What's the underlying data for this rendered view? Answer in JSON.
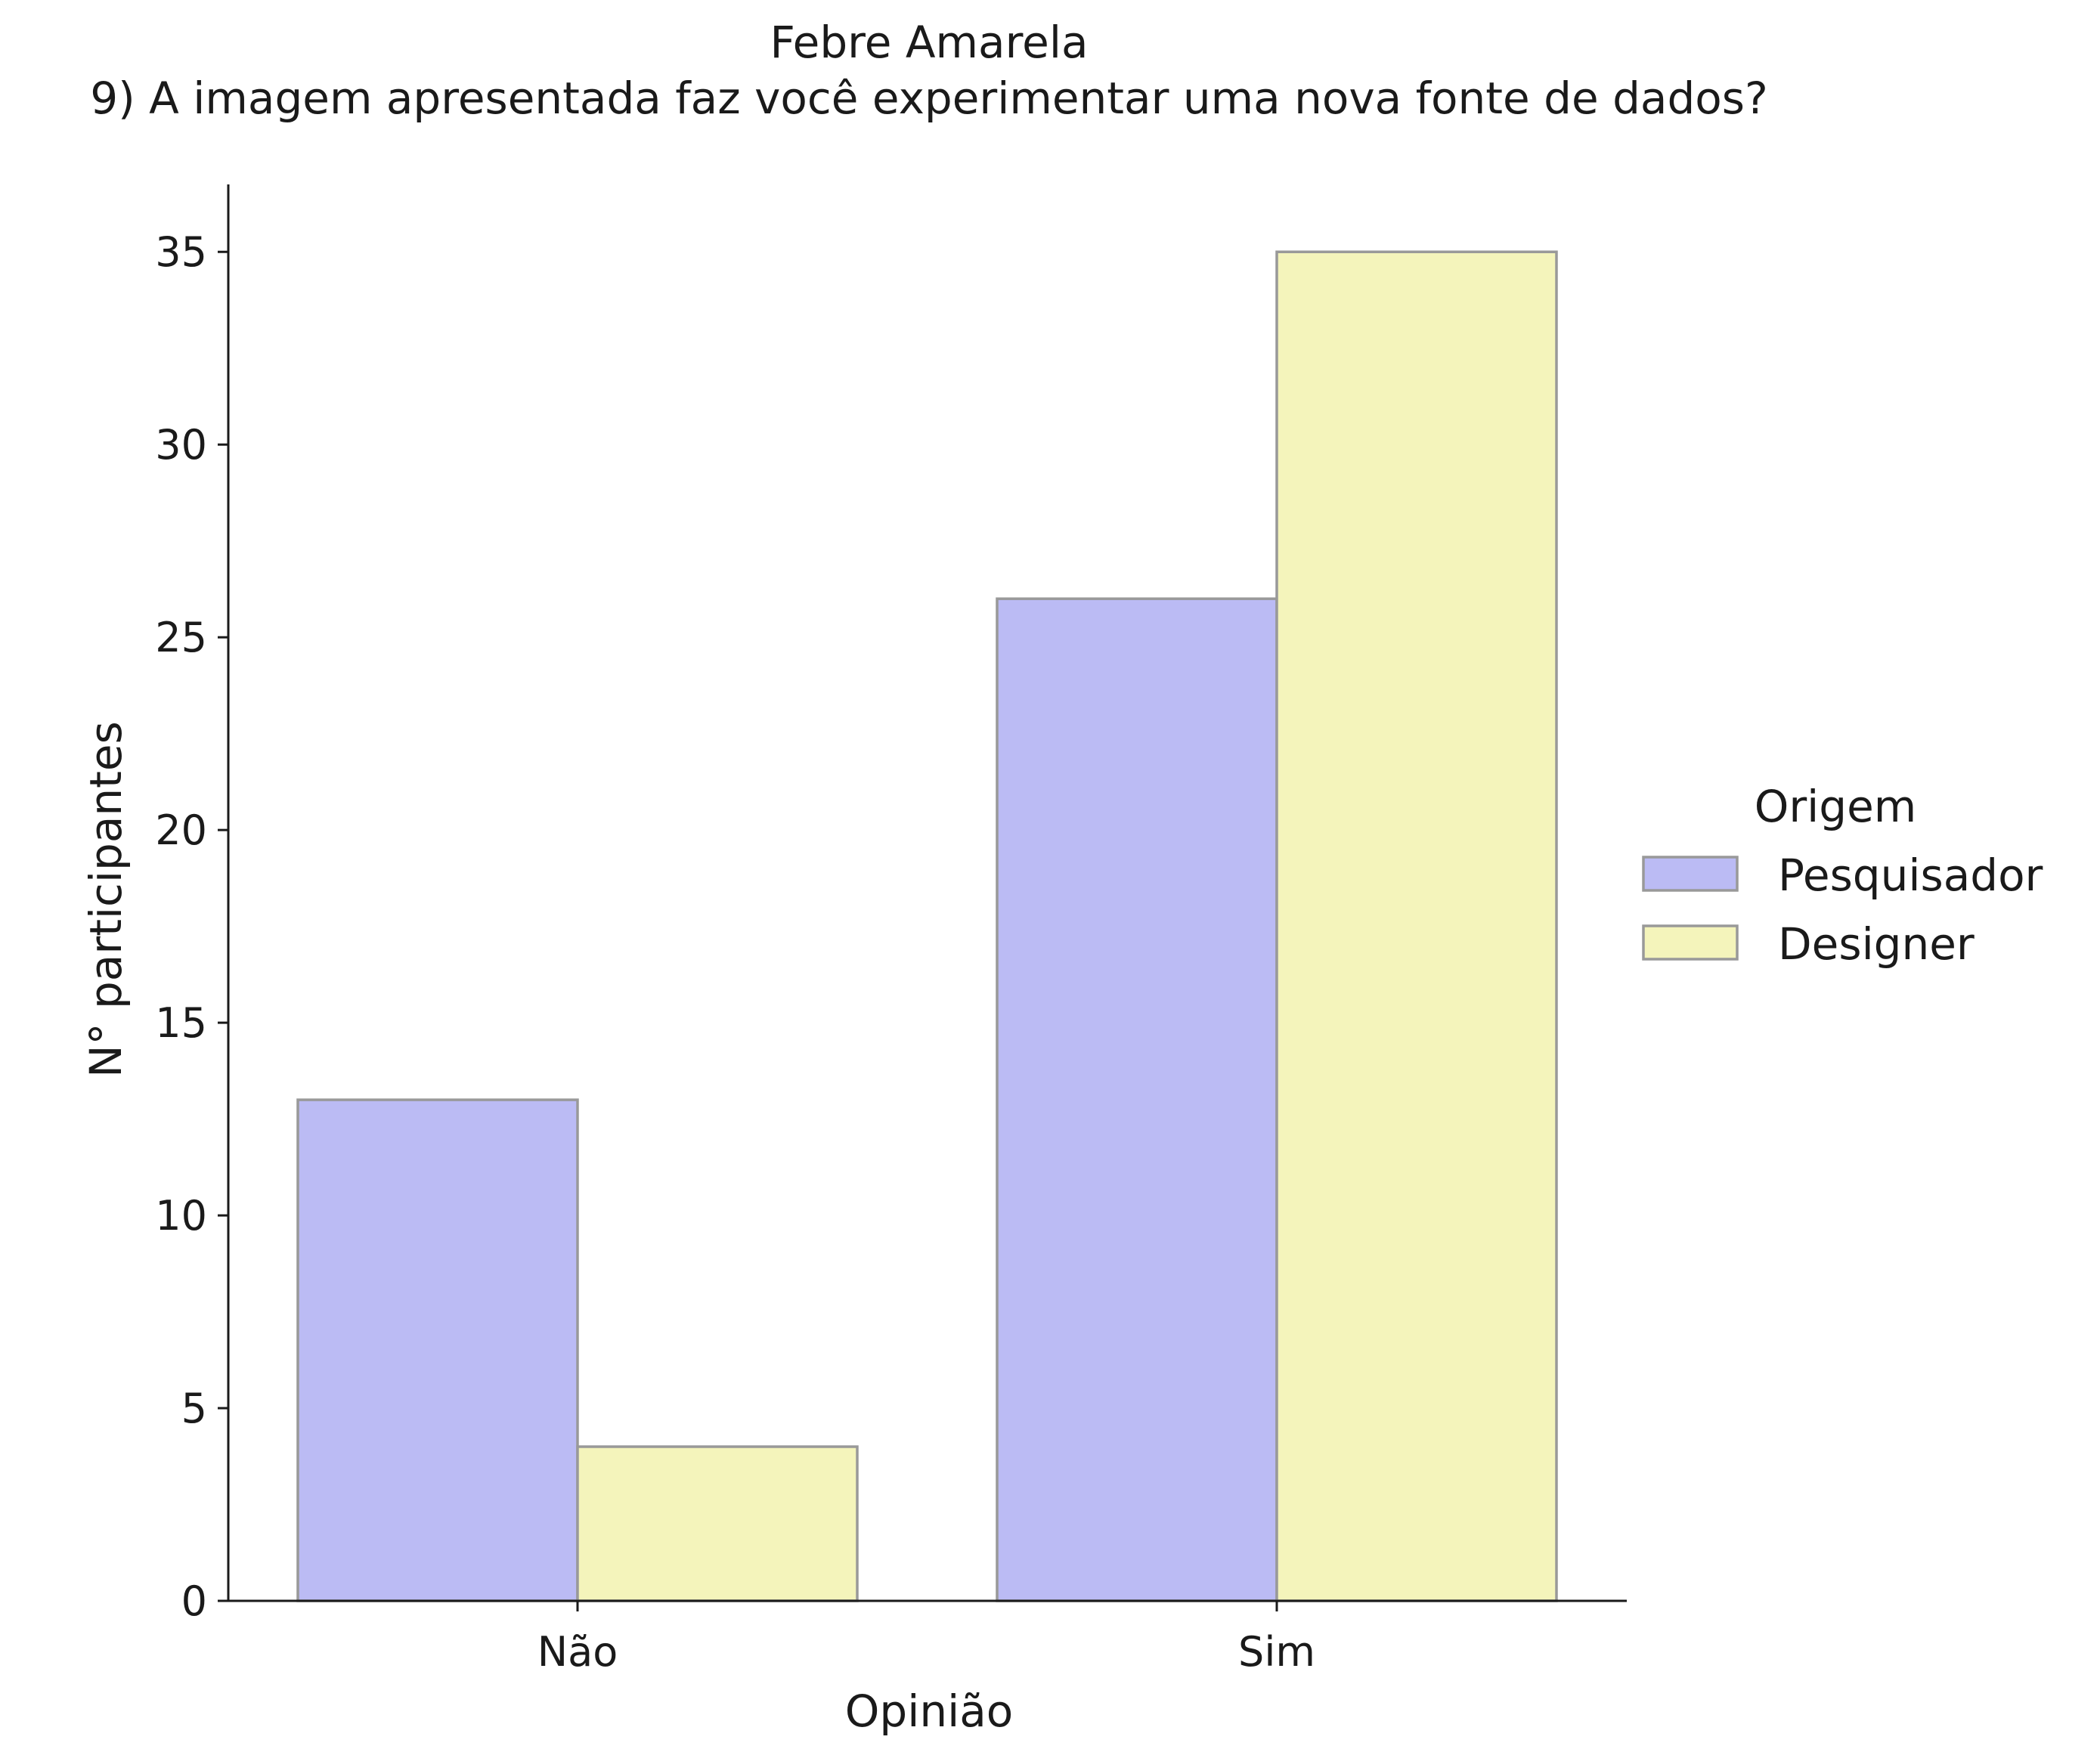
{
  "chart_data": {
    "type": "bar",
    "title": "Febre Amarela",
    "subtitle": "9) A imagem apresentada faz você experimentar uma nova fonte de dados?",
    "xlabel": "Opinião",
    "ylabel": "N° participantes",
    "categories": [
      "Não",
      "Sim"
    ],
    "series": [
      {
        "name": "Pesquisador",
        "values": [
          13,
          26
        ],
        "color": "#bbbbf4"
      },
      {
        "name": "Designer",
        "values": [
          4,
          35
        ],
        "color": "#f4f4bb"
      }
    ],
    "ylim": [
      0,
      36.75
    ],
    "yticks": [
      0,
      5,
      10,
      15,
      20,
      25,
      30,
      35
    ],
    "ytick_labels": [
      "0",
      "5",
      "10",
      "15",
      "20",
      "25",
      "30",
      "35"
    ],
    "legend": {
      "title": "Origem",
      "position": "right"
    },
    "grid": false,
    "edge_color": "#999999"
  }
}
